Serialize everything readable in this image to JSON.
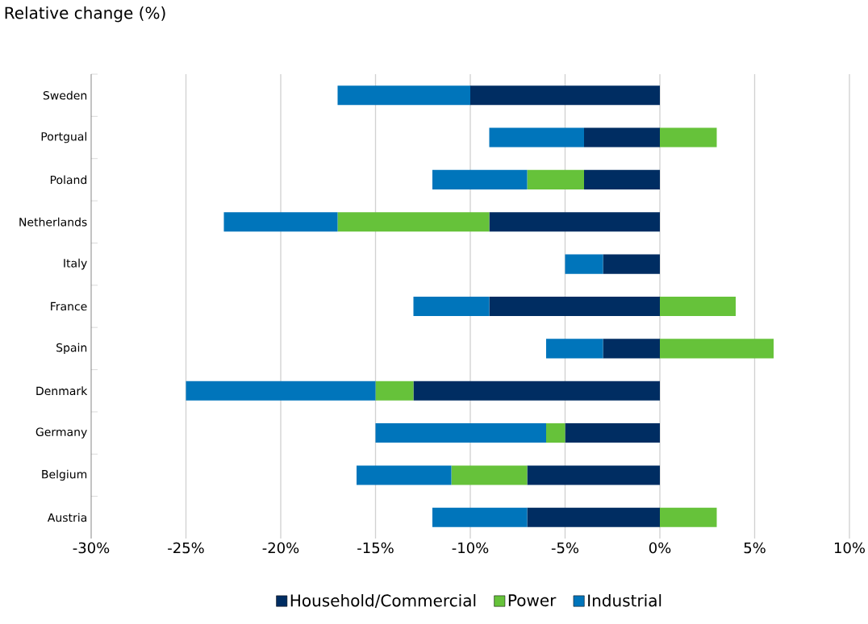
{
  "chart_data": {
    "type": "bar",
    "orientation": "horizontal",
    "stacked": true,
    "title": "Relative change (%)",
    "categories": [
      "Sweden",
      "Portgual",
      "Poland",
      "Netherlands",
      "Italy",
      "France",
      "Spain",
      "Denmark",
      "Germany",
      "Belgium",
      "Austria"
    ],
    "series": [
      {
        "name": "Household/Commercial",
        "color": "#002d62",
        "values": [
          -10,
          -4,
          -4,
          -9,
          -3,
          -9,
          -3,
          -13,
          -5,
          -7,
          -7
        ]
      },
      {
        "name": "Power",
        "color": "#66c23a",
        "values": [
          0,
          3,
          -3,
          -8,
          0,
          4,
          6,
          -2,
          -1,
          -4,
          3
        ]
      },
      {
        "name": "Industrial",
        "color": "#0075bb",
        "values": [
          -7,
          -5,
          -5,
          -6,
          -2,
          -4,
          -3,
          -10,
          -9,
          -5,
          -5
        ]
      }
    ],
    "xlim": [
      -30,
      10
    ],
    "xticks": [
      {
        "value": -30,
        "label": "-30%"
      },
      {
        "value": -25,
        "label": "-25%"
      },
      {
        "value": -20,
        "label": "-20%"
      },
      {
        "value": -15,
        "label": "-15%"
      },
      {
        "value": -10,
        "label": "-10%"
      },
      {
        "value": -5,
        "label": "-5%"
      },
      {
        "value": 0,
        "label": "0%"
      },
      {
        "value": 5,
        "label": "5%"
      },
      {
        "value": 10,
        "label": "10%"
      }
    ],
    "grid": "x",
    "legend": "bottom"
  }
}
